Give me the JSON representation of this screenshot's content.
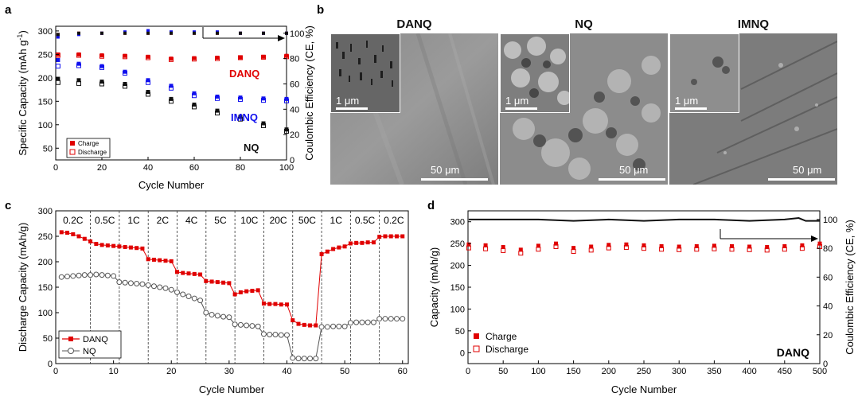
{
  "panels": {
    "a": "a",
    "b": "b",
    "c": "c",
    "d": "d"
  },
  "chart_data": [
    {
      "panel": "a",
      "type": "scatter",
      "xlabel": "Cycle Number",
      "ylabel": "Specific Capacity (mAh g⁻¹)",
      "y2label": "Coulombic Efficiency (CE, %)",
      "xlim": [
        0,
        100
      ],
      "ylim": [
        25,
        310
      ],
      "y2lim": [
        0,
        105.5
      ],
      "xticks": [
        0,
        20,
        40,
        60,
        80,
        100
      ],
      "yticks": [
        50,
        100,
        150,
        200,
        250,
        300
      ],
      "y2ticks": [
        0,
        20,
        40,
        60,
        80,
        100
      ],
      "legend": {
        "position": "bottom-left",
        "entries": [
          "Charge",
          "Discharge"
        ]
      },
      "series": [
        {
          "name": "DANQ",
          "color": "#e00000",
          "charge": {
            "x": [
              1,
              10,
              20,
              30,
              40,
              50,
              60,
              70,
              80,
              90,
              100
            ],
            "y": [
              250,
              250,
              248,
              247,
              245,
              241,
              242,
              243,
              244,
              245,
              247
            ]
          },
          "discharge": {
            "x": [
              1,
              10,
              20,
              30,
              40,
              50,
              60,
              70,
              80,
              90,
              100
            ],
            "y": [
              248,
              248,
              246,
              245,
              243,
              239,
              240,
              241,
              243,
              244,
              245
            ]
          },
          "ce": {
            "x": [
              1,
              10,
              20,
              30,
              40,
              50,
              60,
              70,
              80,
              90,
              100
            ],
            "y": [
              99,
              100,
              100,
              100,
              100,
              100,
              100,
              100,
              100,
              100,
              100
            ]
          }
        },
        {
          "name": "IMNQ",
          "color": "#1010ee",
          "charge": {
            "x": [
              1,
              10,
              20,
              30,
              40,
              50,
              60,
              70,
              80,
              90,
              100
            ],
            "y": [
              238,
              230,
              225,
              213,
              195,
              183,
              167,
              160,
              158,
              156,
              155
            ]
          },
          "discharge": {
            "x": [
              1,
              10,
              20,
              30,
              40,
              50,
              60,
              70,
              80,
              90,
              100
            ],
            "y": [
              225,
              226,
              222,
              210,
              190,
              178,
              162,
              156,
              154,
              152,
              151
            ]
          },
          "ce": {
            "x": [
              1,
              10,
              20,
              30,
              40,
              50,
              60,
              70,
              80,
              90,
              100
            ],
            "y": [
              97,
              99,
              100,
              101,
              102,
              101,
              101,
              101,
              100,
              100,
              100
            ]
          }
        },
        {
          "name": "NQ",
          "color": "#111111",
          "charge": {
            "x": [
              1,
              10,
              20,
              30,
              40,
              50,
              60,
              70,
              80,
              90,
              100
            ],
            "y": [
              198,
              195,
              192,
              187,
              170,
              155,
              143,
              130,
              117,
              103,
              90
            ]
          },
          "discharge": {
            "x": [
              1,
              10,
              20,
              30,
              40,
              50,
              60,
              70,
              80,
              90,
              100
            ],
            "y": [
              190,
              188,
              187,
              182,
              165,
              150,
              138,
              125,
              112,
              98,
              86
            ]
          },
          "ce": {
            "x": [
              1,
              10,
              20,
              30,
              40,
              50,
              60,
              70,
              80,
              90,
              100
            ],
            "y": [
              99,
              100,
              100,
              100,
              100,
              100,
              100,
              100,
              100,
              100,
              100
            ]
          }
        }
      ]
    },
    {
      "panel": "c",
      "type": "line",
      "xlabel": "Cycle Number",
      "ylabel": "Discharge Capacity (mAh/g)",
      "xlim": [
        0,
        61
      ],
      "ylim": [
        0,
        300
      ],
      "xticks": [
        0,
        10,
        20,
        30,
        40,
        50,
        60
      ],
      "yticks": [
        0,
        50,
        100,
        150,
        200,
        250,
        300
      ],
      "legend": {
        "position": "bottom-left",
        "entries": [
          "DANQ",
          "NQ"
        ]
      },
      "rate_labels": [
        "0.2C",
        "0.5C",
        "1C",
        "2C",
        "4C",
        "5C",
        "10C",
        "20C",
        "50C",
        "1C",
        "0.5C",
        "0.2C"
      ],
      "dividers": [
        6,
        11,
        16,
        21,
        26,
        31,
        36,
        41,
        46,
        51,
        56
      ],
      "series": [
        {
          "name": "DANQ",
          "color": "#e00000",
          "marker": "square",
          "x": [
            1,
            2,
            3,
            4,
            5,
            6,
            7,
            8,
            9,
            10,
            11,
            12,
            13,
            14,
            15,
            16,
            17,
            18,
            19,
            20,
            21,
            22,
            23,
            24,
            25,
            26,
            27,
            28,
            29,
            30,
            31,
            32,
            33,
            34,
            35,
            36,
            37,
            38,
            39,
            40,
            41,
            42,
            43,
            44,
            45,
            46,
            47,
            48,
            49,
            50,
            51,
            52,
            53,
            54,
            55,
            56,
            57,
            58,
            59,
            60
          ],
          "y": [
            258,
            257,
            254,
            250,
            245,
            240,
            235,
            233,
            232,
            231,
            230,
            229,
            228,
            227,
            226,
            205,
            204,
            203,
            202,
            201,
            180,
            178,
            177,
            176,
            175,
            162,
            161,
            160,
            159,
            158,
            136,
            140,
            142,
            143,
            144,
            118,
            117,
            117,
            116,
            116,
            85,
            78,
            76,
            75,
            75,
            215,
            220,
            225,
            228,
            230,
            236,
            237,
            237,
            238,
            238,
            249,
            250,
            250,
            250,
            250
          ]
        },
        {
          "name": "NQ",
          "color": "#111111",
          "marker": "circle",
          "x": [
            1,
            2,
            3,
            4,
            5,
            6,
            7,
            8,
            9,
            10,
            11,
            12,
            13,
            14,
            15,
            16,
            17,
            18,
            19,
            20,
            21,
            22,
            23,
            24,
            25,
            26,
            27,
            28,
            29,
            30,
            31,
            32,
            33,
            34,
            35,
            36,
            37,
            38,
            39,
            40,
            41,
            42,
            43,
            44,
            45,
            46,
            47,
            48,
            49,
            50,
            51,
            52,
            53,
            54,
            55,
            56,
            57,
            58,
            59,
            60
          ],
          "y": [
            170,
            171,
            172,
            173,
            174,
            174,
            175,
            174,
            173,
            172,
            160,
            159,
            158,
            157,
            156,
            154,
            152,
            150,
            148,
            145,
            140,
            136,
            132,
            128,
            124,
            100,
            96,
            94,
            92,
            91,
            77,
            76,
            75,
            74,
            73,
            58,
            57,
            57,
            56,
            56,
            11,
            10,
            10,
            10,
            10,
            72,
            72,
            73,
            73,
            73,
            80,
            81,
            81,
            81,
            81,
            88,
            88,
            88,
            88,
            88
          ]
        }
      ]
    },
    {
      "panel": "d",
      "type": "scatter",
      "xlabel": "Cycle Number",
      "ylabel": "Capacity (mAh/g)",
      "y2label": "Coulombic Efficiency (CE, %)",
      "xlim": [
        0,
        500
      ],
      "ylim": [
        -25,
        325
      ],
      "y2lim": [
        0,
        106
      ],
      "xticks": [
        0,
        50,
        100,
        150,
        200,
        250,
        300,
        350,
        400,
        450,
        500
      ],
      "yticks": [
        0,
        50,
        100,
        150,
        200,
        250,
        300
      ],
      "y2ticks": [
        0,
        20,
        40,
        60,
        80,
        100
      ],
      "legend": {
        "position": "bottom-left",
        "entries": [
          "Charge",
          "Discharge"
        ]
      },
      "annotation": "DANQ",
      "series": [
        {
          "name": "Charge",
          "color": "#e00000",
          "marker": "square",
          "x": [
            1,
            25,
            50,
            75,
            100,
            125,
            150,
            175,
            200,
            225,
            250,
            275,
            300,
            325,
            350,
            375,
            400,
            425,
            450,
            475,
            500
          ],
          "y": [
            248,
            246,
            242,
            236,
            245,
            250,
            240,
            243,
            247,
            248,
            246,
            244,
            243,
            244,
            245,
            244,
            243,
            242,
            244,
            246,
            250
          ]
        },
        {
          "name": "Discharge",
          "color": "#e00000",
          "marker": "open-square",
          "x": [
            1,
            25,
            50,
            75,
            100,
            125,
            150,
            175,
            200,
            225,
            250,
            275,
            300,
            325,
            350,
            375,
            400,
            425,
            450,
            475,
            500
          ],
          "y": [
            240,
            238,
            234,
            228,
            237,
            243,
            232,
            235,
            240,
            241,
            239,
            237,
            236,
            237,
            238,
            237,
            236,
            235,
            237,
            239,
            243
          ]
        },
        {
          "name": "CE",
          "color": "#111111",
          "marker": "line",
          "x": [
            1,
            50,
            100,
            150,
            200,
            250,
            300,
            350,
            400,
            450,
            470,
            480,
            500
          ],
          "y": [
            100,
            100,
            100,
            99,
            100,
            99,
            100,
            100,
            99,
            100,
            101,
            99,
            99
          ]
        }
      ]
    }
  ],
  "panel_a": {
    "xlabel": "Cycle Number",
    "ylabel_main": "Specific Capacity (mAh g",
    "ylabel_sup": "-1",
    "ylabel_end": ")",
    "y2label": "Coulombic Efficiency (CE, %)",
    "legend_charge": "Charge",
    "legend_discharge": "Discharge",
    "label_danq": "DANQ",
    "label_imnq": "IMNQ",
    "label_nq": "NQ"
  },
  "panel_b": {
    "images": [
      {
        "title": "DANQ",
        "inset_scale": "1 μm",
        "scale": "50 μm"
      },
      {
        "title": "NQ",
        "inset_scale": "1 μm",
        "scale": "50 μm"
      },
      {
        "title": "IMNQ",
        "inset_scale": "1 μm",
        "scale": "50 μm"
      }
    ]
  },
  "panel_c": {
    "xlabel": "Cycle Number",
    "ylabel": "Discharge Capacity (mAh/g)",
    "legend_danq": "DANQ",
    "legend_nq": "NQ"
  },
  "panel_d": {
    "xlabel": "Cycle Number",
    "ylabel": "Capacity (mAh/g)",
    "y2label": "Coulombic Efficiency (CE, %)",
    "legend_charge": "Charge",
    "legend_discharge": "Discharge",
    "annotation": "DANQ"
  },
  "colors": {
    "red": "#e00000",
    "blue": "#1010ee",
    "black": "#111111",
    "grey": "#777777"
  }
}
